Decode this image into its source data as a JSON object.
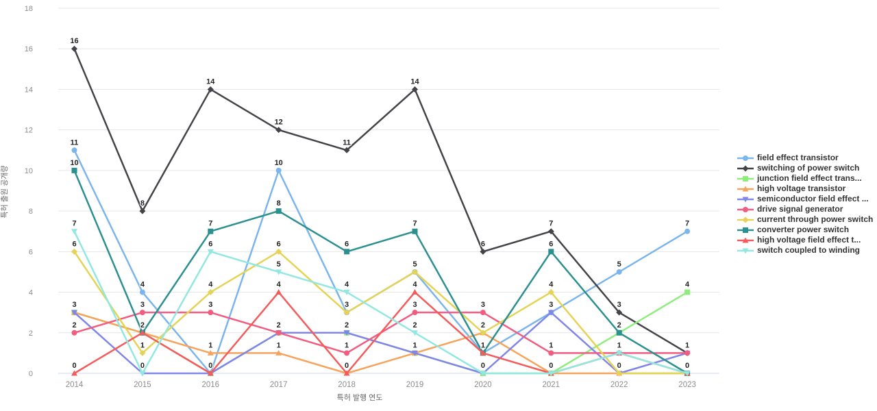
{
  "chart_data": {
    "type": "line",
    "title": "",
    "xlabel": "특허 발행 연도",
    "ylabel": "특허 출원 공개량",
    "x": [
      "2014",
      "2015",
      "2016",
      "2017",
      "2018",
      "2019",
      "2020",
      "2021",
      "2022",
      "2023"
    ],
    "ylim": [
      0,
      18
    ],
    "yticks": [
      0,
      2,
      4,
      6,
      8,
      10,
      12,
      14,
      16,
      18
    ],
    "grid": "horizontal-only",
    "legend_position": "right",
    "data_labels": true,
    "series": [
      {
        "name": "field effect transistor",
        "color": "#7cb5ec",
        "marker": "circle",
        "values": [
          11,
          4,
          0,
          10,
          3,
          5,
          1,
          3,
          5,
          7
        ]
      },
      {
        "name": "switching of power switch",
        "color": "#434348",
        "marker": "diamond",
        "values": [
          16,
          8,
          14,
          12,
          11,
          14,
          6,
          7,
          3,
          1
        ]
      },
      {
        "name": "junction field effect trans...",
        "color": "#90ed7d",
        "marker": "square",
        "values": [
          3,
          2,
          0,
          2,
          2,
          1,
          0,
          0,
          2,
          4
        ]
      },
      {
        "name": "high voltage transistor",
        "color": "#f7a35c",
        "marker": "triangle",
        "values": [
          3,
          2,
          1,
          1,
          0,
          1,
          2,
          0,
          0,
          0
        ]
      },
      {
        "name": "semiconductor field effect ...",
        "color": "#8085e9",
        "marker": "triangle-down",
        "values": [
          3,
          0,
          0,
          2,
          2,
          1,
          0,
          3,
          0,
          1
        ]
      },
      {
        "name": "drive signal generator",
        "color": "#f15c80",
        "marker": "circle",
        "values": [
          2,
          3,
          3,
          2,
          1,
          3,
          3,
          1,
          1,
          1
        ]
      },
      {
        "name": "current through power switch",
        "color": "#e4d354",
        "marker": "diamond",
        "values": [
          6,
          1,
          4,
          6,
          3,
          5,
          2,
          4,
          0,
          0
        ]
      },
      {
        "name": "converter power switch",
        "color": "#2b908f",
        "marker": "square",
        "values": [
          10,
          2,
          7,
          8,
          6,
          7,
          1,
          6,
          2,
          0
        ]
      },
      {
        "name": "high voltage field effect t...",
        "color": "#f45b5b",
        "marker": "triangle",
        "values": [
          0,
          2,
          0,
          4,
          0,
          4,
          1,
          0,
          1,
          0
        ]
      },
      {
        "name": "switch coupled to winding",
        "color": "#91e8e1",
        "marker": "triangle-down",
        "values": [
          7,
          0,
          6,
          5,
          4,
          2,
          0,
          0,
          1,
          0
        ]
      }
    ],
    "style": {
      "grid_color": "#e6e6e6",
      "axis_line_color": "#ccd6eb",
      "tick_label_color": "#8c8c8c",
      "data_label_color": "#222222",
      "legend_text_color": "#333333"
    }
  }
}
